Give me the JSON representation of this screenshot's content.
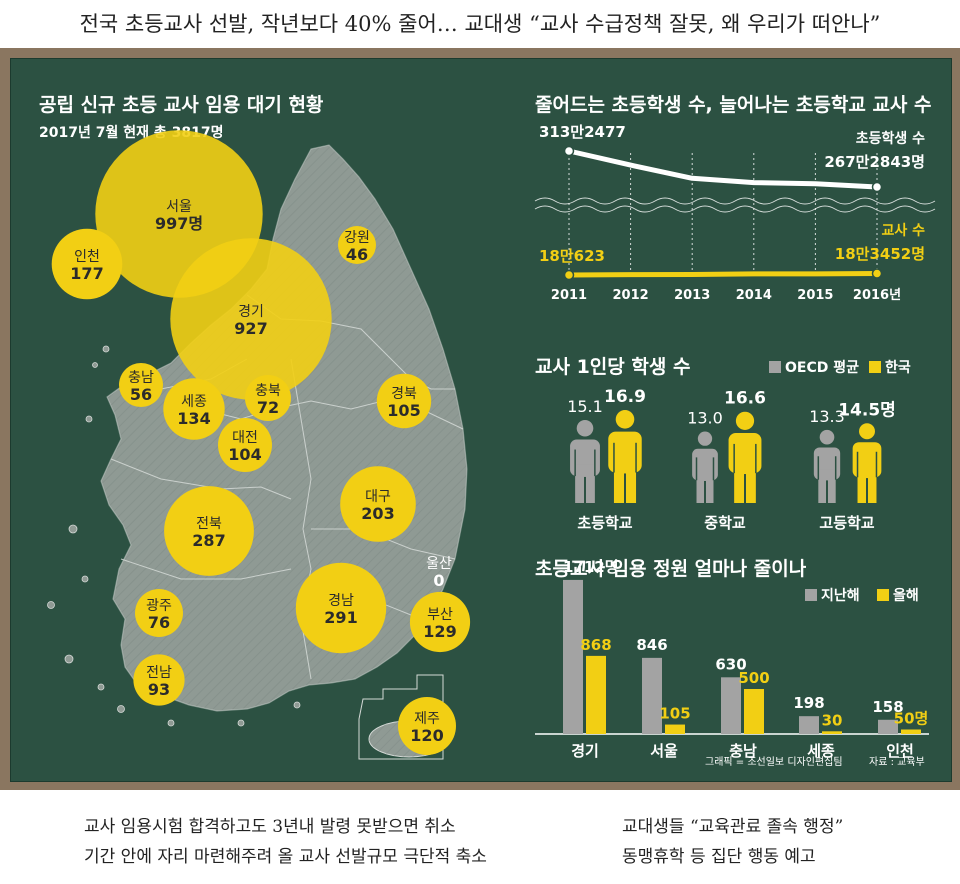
{
  "headline": "전국 초등교사 선발, 작년보다 40% 줄어… 교대생 “교사 수급정책 잘못, 왜 우리가 떠안나”",
  "map": {
    "title": "공립 신규 초등 교사 임용 대기 현황",
    "subtitle": "2017년 7월 현재 총 3817명",
    "regions": [
      {
        "name": "서울",
        "value": "997명"
      },
      {
        "name": "인천",
        "value": "177"
      },
      {
        "name": "경기",
        "value": "927"
      },
      {
        "name": "강원",
        "value": "46"
      },
      {
        "name": "충남",
        "value": "56"
      },
      {
        "name": "세종",
        "value": "134"
      },
      {
        "name": "충북",
        "value": "72"
      },
      {
        "name": "대전",
        "value": "104"
      },
      {
        "name": "경북",
        "value": "105"
      },
      {
        "name": "대구",
        "value": "203"
      },
      {
        "name": "전북",
        "value": "287"
      },
      {
        "name": "울산",
        "value": "0"
      },
      {
        "name": "경남",
        "value": "291"
      },
      {
        "name": "부산",
        "value": "129"
      },
      {
        "name": "광주",
        "value": "76"
      },
      {
        "name": "전남",
        "value": "93"
      },
      {
        "name": "제주",
        "value": "120"
      }
    ]
  },
  "chart_data": [
    {
      "type": "line",
      "title": "줄어드는 초등학생 수, 늘어나는 초등학교 교사 수",
      "x": [
        "2011",
        "2012",
        "2013",
        "2014",
        "2015",
        "2016년"
      ],
      "series": [
        {
          "name": "초등학생 수",
          "values": [
            3132477,
            2951995,
            2784000,
            2728509,
            2714610,
            2672843
          ],
          "labels": [
            "313만2477",
            "267만2843명"
          ]
        },
        {
          "name": "교사 수",
          "values": [
            180623,
            181435,
            181585,
            182672,
            182658,
            183452
          ],
          "labels": [
            "18만623",
            "18만3452명"
          ]
        }
      ]
    },
    {
      "type": "bar",
      "title": "교사 1인당 학생 수",
      "categories": [
        "초등학교",
        "중학교",
        "고등학교"
      ],
      "series": [
        {
          "name": "OECD 평균",
          "values": [
            15.1,
            13.0,
            13.3
          ],
          "labels": [
            "15.1",
            "13.0",
            "13.3"
          ]
        },
        {
          "name": "한국",
          "values": [
            16.9,
            16.6,
            14.5
          ],
          "labels": [
            "16.9",
            "16.6",
            "14.5명"
          ]
        }
      ],
      "legend": "top-right"
    },
    {
      "type": "bar",
      "title": "초등교사 임용 정원 얼마나 줄이나",
      "categories": [
        "경기",
        "서울",
        "충남",
        "세종",
        "인천"
      ],
      "series": [
        {
          "name": "지난해",
          "values": [
            1712,
            846,
            630,
            198,
            158
          ],
          "labels": [
            "1712명",
            "846",
            "630",
            "198",
            "158"
          ]
        },
        {
          "name": "올해",
          "values": [
            868,
            105,
            500,
            30,
            50
          ],
          "labels": [
            "868",
            "105",
            "500",
            "30",
            "50명"
          ]
        }
      ],
      "legend": "top-right"
    }
  ],
  "credits": {
    "graphic": "그래픽 = 조선일보 디자인편집팀",
    "source": "자료 : 교육부"
  },
  "footer": {
    "left1": "교사 임용시험 합격하고도 3년내 발령 못받으면 취소",
    "left2": "기간 안에 자리 마련해주려 올 교사 선발규모 극단적 축소",
    "right1": "교대생들 “교육관료 졸속 행정”",
    "right2": "동맹휴학 등 집단 행동 예고"
  },
  "colors": {
    "board": "#2c5142",
    "frame": "#8a7660",
    "yellow": "#f2cf14",
    "gray": "#a3a3a3",
    "land": "#8f9a94"
  }
}
